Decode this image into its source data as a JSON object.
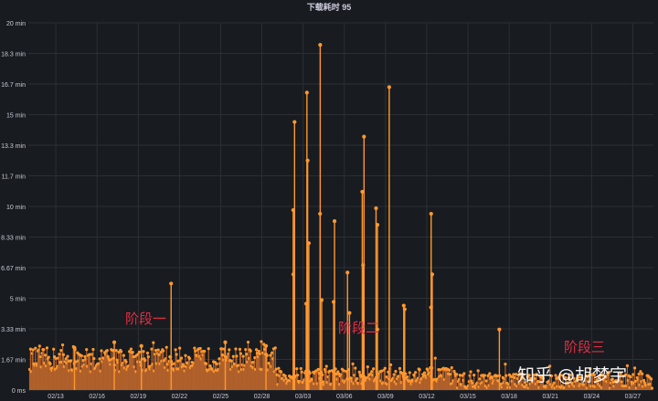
{
  "panel": {
    "title": "下载耗时 95"
  },
  "annotations": {
    "phase1": "阶段一",
    "phase2": "阶段二",
    "phase3": "阶段三"
  },
  "watermark": "知乎 @胡梦宇",
  "colors": {
    "background": "#181b1f",
    "series": "#ff9830",
    "bar": "#b0602a",
    "grid": "#2c3035",
    "axis_text": "#ccccdc",
    "annotation": "#e02f44"
  },
  "chart_data": {
    "type": "bar",
    "title": "下载耗时 95",
    "unit": "min",
    "ylim": [
      0,
      20
    ],
    "y_ticks": [
      "0 ms",
      "1.67 min",
      "3.33 min",
      "5 min",
      "6.67 min",
      "8.33 min",
      "10 min",
      "11.7 min",
      "13.3 min",
      "15 min",
      "16.7 min",
      "18.3 min",
      "20 min"
    ],
    "x_ticks": [
      "02/13",
      "02/16",
      "02/19",
      "02/22",
      "02/25",
      "02/28",
      "03/03",
      "03/06",
      "03/09",
      "03/12",
      "03/15",
      "03/18",
      "03/21",
      "03/24",
      "03/27"
    ],
    "x_range_days": [
      0,
      45.5
    ],
    "x_day0": "02/11",
    "baseline_levels": [
      {
        "from": "02/11",
        "to": "03/01",
        "min": 1.0,
        "max": 2.3
      },
      {
        "from": "03/01",
        "to": "03/14",
        "min": 0.3,
        "max": 1.2
      },
      {
        "from": "03/14",
        "to": "03/28",
        "min": 0.1,
        "max": 0.9
      }
    ],
    "grid": true,
    "legend": "none",
    "peaks": [
      {
        "x": "02/14",
        "y": 2.3
      },
      {
        "x": "02/17",
        "y": 2.6
      },
      {
        "x": "02/19",
        "y": 2.4
      },
      {
        "x": "02/21",
        "y": 5.8
      },
      {
        "x": "02/25",
        "y": 2.6
      },
      {
        "x": "02/28",
        "y": 2.4
      },
      {
        "x": "03/02",
        "y": 14.6
      },
      {
        "x": "03/02",
        "y": 9.8
      },
      {
        "x": "03/02",
        "y": 6.3
      },
      {
        "x": "03/03",
        "y": 16.2
      },
      {
        "x": "03/03",
        "y": 12.5
      },
      {
        "x": "03/03",
        "y": 8.0
      },
      {
        "x": "03/03",
        "y": 4.7
      },
      {
        "x": "03/04",
        "y": 18.8
      },
      {
        "x": "03/04",
        "y": 9.6
      },
      {
        "x": "03/04",
        "y": 4.9
      },
      {
        "x": "03/05",
        "y": 9.2
      },
      {
        "x": "03/05",
        "y": 4.8
      },
      {
        "x": "03/06",
        "y": 6.4
      },
      {
        "x": "03/06",
        "y": 4.2
      },
      {
        "x": "03/07",
        "y": 13.8
      },
      {
        "x": "03/07",
        "y": 10.8
      },
      {
        "x": "03/07",
        "y": 6.8
      },
      {
        "x": "03/08",
        "y": 9.9
      },
      {
        "x": "03/08",
        "y": 9.0
      },
      {
        "x": "03/08",
        "y": 3.3
      },
      {
        "x": "03/09",
        "y": 16.5
      },
      {
        "x": "03/10",
        "y": 4.6
      },
      {
        "x": "03/10",
        "y": 4.4
      },
      {
        "x": "03/12",
        "y": 9.6
      },
      {
        "x": "03/12",
        "y": 6.3
      },
      {
        "x": "03/12",
        "y": 4.5
      },
      {
        "x": "03/17",
        "y": 3.3
      }
    ]
  }
}
